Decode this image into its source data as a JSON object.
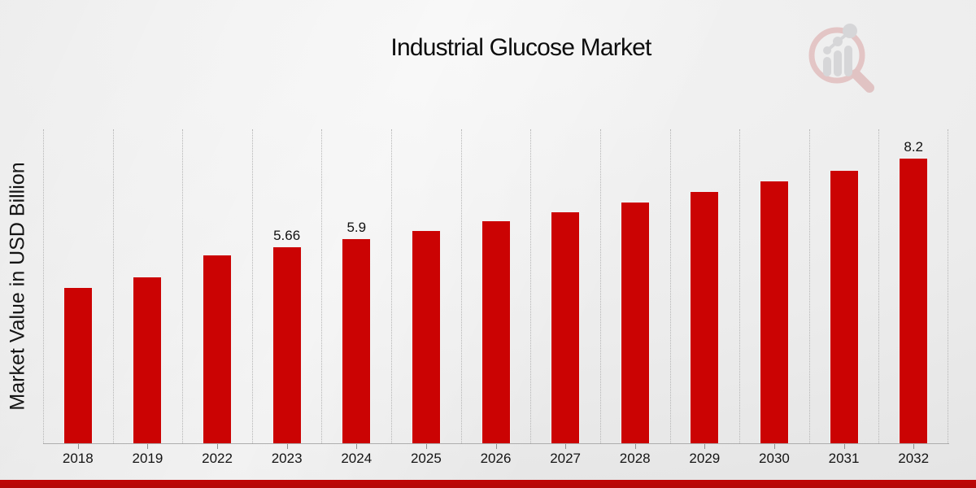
{
  "page": {
    "background_color": "#ebebeb",
    "accent_red": "#cb0303",
    "bottom_strip_color": "#b90606"
  },
  "logo": {
    "icon": "magnifier-bar-chart-logo",
    "circle_color": "#dba4a4",
    "bars_color": "#c3c3c7"
  },
  "chart_data": {
    "type": "bar",
    "title": "Industrial Glucose Market",
    "xlabel": "",
    "ylabel": "Market Value in USD Billion",
    "categories": [
      "2018",
      "2019",
      "2022",
      "2023",
      "2024",
      "2025",
      "2026",
      "2027",
      "2028",
      "2029",
      "2030",
      "2031",
      "2032"
    ],
    "values": [
      4.49,
      4.78,
      5.42,
      5.66,
      5.9,
      6.12,
      6.41,
      6.66,
      6.94,
      7.24,
      7.55,
      7.86,
      8.2
    ],
    "data_labels": [
      "",
      "",
      "",
      "5.66",
      "5.9",
      "",
      "",
      "",
      "",
      "",
      "",
      "",
      "8.2"
    ],
    "ylim": [
      0,
      9.02
    ],
    "bar_color": "#cb0303",
    "grid": "vertical-dotted-column-separators",
    "legend": "none",
    "y_axis_ticks_visible": false,
    "x_axis_ticks": "one per bar, below axis line"
  }
}
